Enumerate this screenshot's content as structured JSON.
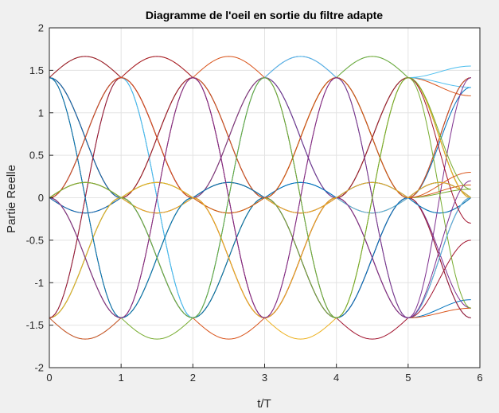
{
  "chart_data": {
    "type": "line",
    "title": "Diagramme de l'oeil en sortie du filtre adapte",
    "xlabel": "t/T",
    "ylabel": "Partie Reelle",
    "xlim": [
      0,
      6
    ],
    "ylim": [
      -2,
      2
    ],
    "xticks": [
      "0",
      "1",
      "2",
      "3",
      "4",
      "5",
      "6"
    ],
    "yticks": [
      "-2",
      "-1.5",
      "-1",
      "-0.5",
      "0",
      "0.5",
      "1",
      "1.5",
      "2"
    ],
    "grid": true,
    "x_end": 5.875,
    "levels": [
      -1.414,
      0,
      1.414
    ],
    "traces_description_x": [
      0,
      1,
      2,
      3,
      4,
      5,
      5.875
    ],
    "series": [
      {
        "color": "#0072BD",
        "values": [
          -1.414,
          0,
          1.414,
          0,
          -1.414,
          0,
          1.3
        ]
      },
      {
        "color": "#D95319",
        "values": [
          1.414,
          0,
          -1.414,
          -1.414,
          0,
          1.414,
          1.2
        ]
      },
      {
        "color": "#EDB120",
        "values": [
          0,
          1.414,
          1.414,
          0,
          -1.414,
          0,
          0
        ]
      },
      {
        "color": "#7E2F8E",
        "values": [
          0,
          -1.414,
          0,
          1.414,
          1.414,
          0,
          -1.3
        ]
      },
      {
        "color": "#77AC30",
        "values": [
          1.414,
          1.414,
          0,
          -1.414,
          0,
          1.414,
          0
        ]
      },
      {
        "color": "#4DBEEE",
        "values": [
          -1.414,
          -1.414,
          0,
          0,
          1.414,
          1.414,
          1.55
        ]
      },
      {
        "color": "#A2142F",
        "values": [
          0,
          0,
          -1.414,
          0,
          1.414,
          0,
          -1.414
        ]
      },
      {
        "color": "#0072BD",
        "values": [
          1.414,
          0,
          0,
          1.414,
          0,
          -1.414,
          -1.2
        ]
      },
      {
        "color": "#D95319",
        "values": [
          -1.414,
          0,
          1.414,
          1.414,
          0,
          0,
          0.15
        ]
      },
      {
        "color": "#EDB120",
        "values": [
          0,
          1.414,
          0,
          -1.414,
          -1.414,
          0,
          1.414
        ]
      },
      {
        "color": "#7E2F8E",
        "values": [
          1.414,
          0,
          -1.414,
          0,
          0,
          1.414,
          0
        ]
      },
      {
        "color": "#77AC30",
        "values": [
          0,
          -1.414,
          -1.414,
          0,
          1.414,
          0,
          0
        ]
      },
      {
        "color": "#4DBEEE",
        "values": [
          -1.414,
          0,
          0,
          -1.414,
          0,
          1.414,
          1.3
        ]
      },
      {
        "color": "#A2142F",
        "values": [
          1.414,
          1.414,
          0,
          0,
          -1.414,
          -1.414,
          -0.5
        ]
      },
      {
        "color": "#0072BD",
        "values": [
          0,
          0,
          1.414,
          0,
          -1.414,
          0,
          1.414
        ]
      },
      {
        "color": "#D95319",
        "values": [
          -1.414,
          -1.414,
          0,
          1.414,
          0,
          -1.414,
          -1.3
        ]
      },
      {
        "color": "#EDB120",
        "values": [
          1.414,
          0,
          1.414,
          0,
          0,
          -1.414,
          0
        ]
      },
      {
        "color": "#7E2F8E",
        "values": [
          0,
          1.414,
          0,
          0,
          -1.414,
          0,
          1.414
        ]
      },
      {
        "color": "#77AC30",
        "values": [
          -1.414,
          0,
          -1.414,
          0,
          1.414,
          1.414,
          0
        ]
      },
      {
        "color": "#4DBEEE",
        "values": [
          0,
          -1.414,
          0,
          1.414,
          0,
          0,
          -1.414
        ]
      },
      {
        "color": "#A2142F",
        "values": [
          1.414,
          0,
          0,
          -1.414,
          1.414,
          0,
          -1.414
        ]
      },
      {
        "color": "#0072BD",
        "values": [
          0,
          1.414,
          -1.414,
          0,
          0,
          1.414,
          0
        ]
      },
      {
        "color": "#D95319",
        "values": [
          -1.414,
          1.414,
          0,
          -1.414,
          0,
          0,
          1.414
        ]
      },
      {
        "color": "#EDB120",
        "values": [
          0,
          0,
          0,
          1.414,
          -1.414,
          1.414,
          0
        ]
      },
      {
        "color": "#7E2F8E",
        "values": [
          1.414,
          -1.414,
          1.414,
          0,
          0,
          -1.414,
          1.414
        ]
      },
      {
        "color": "#77AC30",
        "values": [
          0,
          0,
          0,
          0,
          1.414,
          0,
          0.1
        ]
      },
      {
        "color": "#4DBEEE",
        "values": [
          -1.414,
          1.414,
          -1.414,
          1.414,
          0,
          0,
          0
        ]
      },
      {
        "color": "#A2142F",
        "values": [
          0,
          0,
          1.414,
          -1.414,
          0,
          0,
          0
        ]
      },
      {
        "color": "#0072BD",
        "values": [
          1.414,
          0,
          -1.414,
          1.414,
          -1.414,
          0,
          0
        ]
      },
      {
        "color": "#D95319",
        "values": [
          0,
          -1.414,
          1.414,
          0,
          1.414,
          -1.414,
          0
        ]
      },
      {
        "color": "#EDB120",
        "values": [
          -1.414,
          0,
          0,
          0,
          0,
          1.414,
          0
        ]
      },
      {
        "color": "#7E2F8E",
        "values": [
          0,
          1.414,
          0,
          1.414,
          0,
          -1.414,
          0
        ]
      },
      {
        "color": "#77AC30",
        "values": [
          1.414,
          -1.414,
          0,
          0,
          -1.414,
          1.414,
          -1.3
        ]
      },
      {
        "color": "#4DBEEE",
        "values": [
          0,
          0,
          -1.414,
          1.414,
          1.414,
          -1.414,
          0
        ]
      },
      {
        "color": "#A2142F",
        "values": [
          -1.414,
          1.414,
          1.414,
          -1.414,
          0,
          1.414,
          -0.3
        ]
      },
      {
        "color": "#0072BD",
        "values": [
          1.414,
          -1.414,
          0,
          0,
          0,
          0,
          0
        ]
      },
      {
        "color": "#D95319",
        "values": [
          0,
          1.414,
          0,
          0,
          1.414,
          0,
          0.3
        ]
      },
      {
        "color": "#EDB120",
        "values": [
          0,
          0,
          0,
          -1.414,
          0,
          0,
          0
        ]
      },
      {
        "color": "#7E2F8E",
        "values": [
          0,
          -1.414,
          1.414,
          -1.414,
          1.414,
          -1.414,
          0.2
        ]
      },
      {
        "color": "#77AC30",
        "values": [
          0,
          0,
          -1.414,
          1.414,
          -1.414,
          1.414,
          0.1
        ]
      }
    ]
  }
}
